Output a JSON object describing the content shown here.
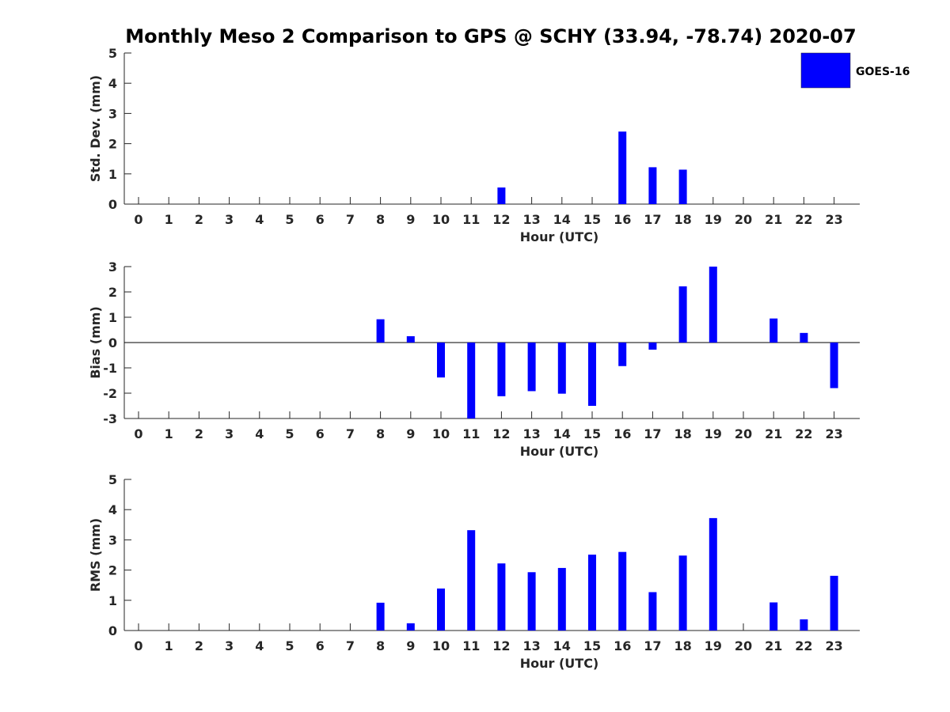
{
  "title": "Monthly Meso 2 Comparison to GPS @ SCHY (33.94, -78.74) 2020-07",
  "legend": {
    "label": "GOES-16",
    "color": "#0000FF",
    "placement": "top-right"
  },
  "chart_data": [
    {
      "type": "bar",
      "ylabel": "Std. Dev. (mm)",
      "xlabel": "Hour (UTC)",
      "ylim": [
        0,
        5
      ],
      "yticks": [
        0,
        1,
        2,
        3,
        4,
        5
      ],
      "categories": [
        0,
        1,
        2,
        3,
        4,
        5,
        6,
        7,
        8,
        9,
        10,
        11,
        12,
        13,
        14,
        15,
        16,
        17,
        18,
        19,
        20,
        21,
        22,
        23
      ],
      "series": [
        {
          "values": [
            0,
            0,
            0,
            0,
            0,
            0,
            0,
            0,
            0,
            0,
            0,
            0,
            0.55,
            0,
            0,
            0,
            2.4,
            1.22,
            1.14,
            0,
            0,
            0,
            0,
            0
          ]
        }
      ],
      "grid": false
    },
    {
      "type": "bar",
      "ylabel": "Bias (mm)",
      "xlabel": "Hour (UTC)",
      "ylim": [
        -3,
        3
      ],
      "yticks": [
        -3,
        -2,
        -1,
        0,
        1,
        2,
        3
      ],
      "categories": [
        0,
        1,
        2,
        3,
        4,
        5,
        6,
        7,
        8,
        9,
        10,
        11,
        12,
        13,
        14,
        15,
        16,
        17,
        18,
        19,
        20,
        21,
        22,
        23
      ],
      "series": [
        {
          "values": [
            0,
            0,
            0,
            0,
            0,
            0,
            0,
            0,
            0.92,
            0.25,
            -1.38,
            -3.0,
            -2.12,
            -1.92,
            -2.02,
            -2.5,
            -0.93,
            -0.28,
            2.22,
            3.0,
            0,
            0.95,
            0.38,
            -1.8
          ]
        }
      ],
      "zero_line": true,
      "grid": false
    },
    {
      "type": "bar",
      "ylabel": "RMS (mm)",
      "xlabel": "Hour (UTC)",
      "ylim": [
        0,
        5
      ],
      "yticks": [
        0,
        1,
        2,
        3,
        4,
        5
      ],
      "categories": [
        0,
        1,
        2,
        3,
        4,
        5,
        6,
        7,
        8,
        9,
        10,
        11,
        12,
        13,
        14,
        15,
        16,
        17,
        18,
        19,
        20,
        21,
        22,
        23
      ],
      "series": [
        {
          "values": [
            0,
            0,
            0,
            0,
            0,
            0,
            0,
            0,
            0.92,
            0.24,
            1.39,
            3.32,
            2.22,
            1.93,
            2.07,
            2.51,
            2.6,
            1.27,
            2.48,
            3.72,
            0,
            0.93,
            0.37,
            1.81
          ]
        }
      ],
      "grid": false
    }
  ]
}
